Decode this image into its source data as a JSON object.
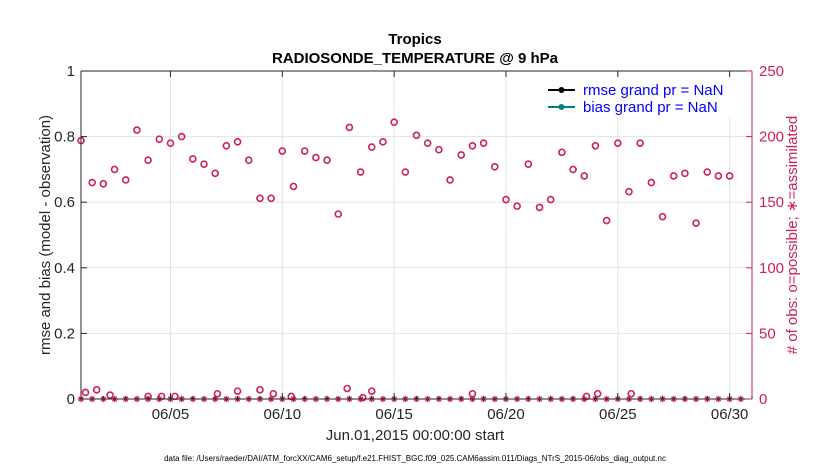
{
  "chart_data": {
    "type": "scatter",
    "title": "Tropics",
    "subtitle": "RADIOSONDE_TEMPERATURE @ 9 hPa",
    "xlabel": "Jun.01,2015 00:00:00 start",
    "ylabel_left": "rmse and bias (model - observation)",
    "ylabel_right": "# of obs: o=possible; ∗=assimilated",
    "footnote": "data file: /Users/raeder/DAI/ATM_forcXX/CAM6_setup/f.e21.FHIST_BGC.f09_025.CAM6assim.011/Diags_NTrS_2015-06/obs_diag_output.nc",
    "xlim": [
      1,
      31
    ],
    "x_tick_values": [
      5,
      10,
      15,
      20,
      25,
      30
    ],
    "x_tick_labels": [
      "06/05",
      "06/10",
      "06/15",
      "06/20",
      "06/25",
      "06/30"
    ],
    "ylim_left": [
      0,
      1
    ],
    "y_left_ticks": [
      "0",
      "0.2",
      "0.4",
      "0.6",
      "0.8",
      "1"
    ],
    "ylim_right": [
      0,
      250
    ],
    "y_right_ticks": [
      "0",
      "50",
      "100",
      "150",
      "200",
      "250"
    ],
    "colors": {
      "rmse": "#000000",
      "bias": "#008080",
      "obs": "#cc1f5f",
      "right_axis": "#cc1f5f"
    },
    "legend": [
      {
        "name": "rmse grand pr = NaN",
        "color": "#000000",
        "text_color": "#0000ff"
      },
      {
        "name": "bias grand pr = NaN",
        "color": "#008080",
        "text_color": "#0000ff"
      }
    ],
    "legend_position": "top-right",
    "series": [
      {
        "name": "possible_top",
        "axis": "right",
        "marker": "o",
        "x": [
          1.0,
          1.5,
          2.0,
          2.5,
          3.0,
          3.5,
          4.0,
          4.5,
          5.0,
          5.5,
          6.0,
          6.5,
          7.0,
          7.5,
          8.0,
          8.5,
          9.0,
          9.5,
          10.0,
          10.5,
          11.0,
          11.5,
          12.0,
          12.5,
          13.0,
          13.5,
          14.0,
          14.5,
          15.0,
          15.5,
          16.0,
          16.5,
          17.0,
          17.5,
          18.0,
          18.5,
          19.0,
          19.5,
          20.0,
          20.5,
          21.0,
          21.5,
          22.0,
          22.5,
          23.0,
          23.5,
          24.0,
          24.5,
          25.0,
          25.5,
          26.0,
          26.5,
          27.0,
          27.5,
          28.0,
          28.5,
          29.0,
          29.5,
          30.0,
          30.5
        ],
        "values": [
          197,
          165,
          164,
          175,
          167,
          205,
          182,
          198,
          195,
          200,
          183,
          179,
          172,
          193,
          196,
          182,
          153,
          153,
          189,
          162,
          189,
          184,
          182,
          141,
          207,
          173,
          192,
          196,
          211,
          173,
          201,
          195,
          190,
          167,
          186,
          193,
          195,
          177,
          152,
          147,
          179,
          146,
          152,
          188,
          175,
          170,
          193,
          136,
          195,
          158,
          195,
          165,
          139,
          170,
          172,
          134,
          173,
          170,
          170,
          null
        ],
        "annotation": "approximate"
      },
      {
        "name": "possible_bottom",
        "axis": "right",
        "marker": "o",
        "x": [
          1.2,
          1.7,
          2.3,
          4.0,
          4.6,
          5.2,
          7.1,
          8.0,
          9.0,
          9.6,
          10.4,
          12.9,
          13.6,
          14.0,
          18.5,
          23.6,
          24.1,
          25.6
        ],
        "values": [
          5,
          7,
          3,
          2,
          2,
          2,
          4,
          6,
          7,
          4,
          2,
          8,
          1,
          6,
          4,
          2,
          4,
          4
        ]
      },
      {
        "name": "assimilated",
        "axis": "right",
        "marker": "*",
        "x": [
          1.0,
          1.5,
          2.0,
          2.5,
          3.0,
          3.5,
          4.0,
          4.5,
          5.0,
          5.5,
          6.0,
          6.5,
          7.0,
          7.5,
          8.0,
          8.5,
          9.0,
          9.5,
          10.0,
          10.5,
          11.0,
          11.5,
          12.0,
          12.5,
          13.0,
          13.5,
          14.0,
          14.5,
          15.0,
          15.5,
          16.0,
          16.5,
          17.0,
          17.5,
          18.0,
          18.5,
          19.0,
          19.5,
          20.0,
          20.5,
          21.0,
          21.5,
          22.0,
          22.5,
          23.0,
          23.5,
          24.0,
          24.5,
          25.0,
          25.5,
          26.0,
          26.5,
          27.0,
          27.5,
          28.0,
          28.5,
          29.0,
          29.5,
          30.0,
          30.5
        ],
        "values": [
          0,
          0,
          0,
          0,
          0,
          0,
          0,
          0,
          0,
          0,
          0,
          0,
          0,
          0,
          0,
          0,
          0,
          0,
          0,
          0,
          0,
          0,
          0,
          0,
          0,
          0,
          0,
          0,
          0,
          0,
          0,
          0,
          0,
          0,
          0,
          0,
          0,
          0,
          0,
          0,
          0,
          0,
          0,
          0,
          0,
          0,
          0,
          0,
          0,
          0,
          0,
          0,
          0,
          0,
          0,
          0,
          0,
          0,
          0,
          0
        ]
      }
    ]
  }
}
